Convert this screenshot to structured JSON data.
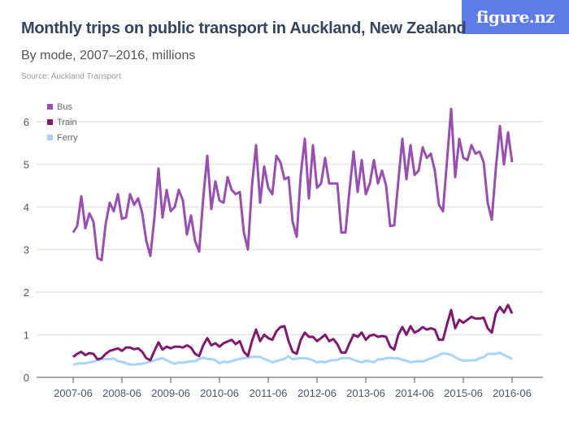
{
  "header": {
    "title": "Monthly trips on public transport in Auckland, New Zealand",
    "subtitle": "By mode, 2007–2016, millions",
    "source": "Source: Auckland Transport",
    "logo": "figure.nz"
  },
  "colors": {
    "bus": "#994fb0",
    "train": "#801a6e",
    "ferry": "#a8d4fa",
    "logo_bg": "#5d7ce8"
  },
  "chart_data": {
    "type": "line",
    "title": "Monthly trips on public transport in Auckland, New Zealand",
    "subtitle": "By mode, 2007–2016, millions",
    "ylim": [
      0,
      6.5
    ],
    "yticks": [
      "0",
      "1",
      "2",
      "3",
      "4",
      "5",
      "6"
    ],
    "xticks": [
      "2007-06",
      "2008-06",
      "2009-06",
      "2010-06",
      "2011-06",
      "2012-06",
      "2013-06",
      "2014-06",
      "2015-06",
      "2016-06"
    ],
    "grid": true,
    "legend": "top-left",
    "x": [
      "2007-06",
      "2007-07",
      "2007-08",
      "2007-09",
      "2007-10",
      "2007-11",
      "2007-12",
      "2008-01",
      "2008-02",
      "2008-03",
      "2008-04",
      "2008-05",
      "2008-06",
      "2008-07",
      "2008-08",
      "2008-09",
      "2008-10",
      "2008-11",
      "2008-12",
      "2009-01",
      "2009-02",
      "2009-03",
      "2009-04",
      "2009-05",
      "2009-06",
      "2009-07",
      "2009-08",
      "2009-09",
      "2009-10",
      "2009-11",
      "2009-12",
      "2010-01",
      "2010-02",
      "2010-03",
      "2010-04",
      "2010-05",
      "2010-06",
      "2010-07",
      "2010-08",
      "2010-09",
      "2010-10",
      "2010-11",
      "2010-12",
      "2011-01",
      "2011-02",
      "2011-03",
      "2011-04",
      "2011-05",
      "2011-06",
      "2011-07",
      "2011-08",
      "2011-09",
      "2011-10",
      "2011-11",
      "2011-12",
      "2012-01",
      "2012-02",
      "2012-03",
      "2012-04",
      "2012-05",
      "2012-06",
      "2012-07",
      "2012-08",
      "2012-09",
      "2012-10",
      "2012-11",
      "2012-12",
      "2013-01",
      "2013-02",
      "2013-03",
      "2013-04",
      "2013-05",
      "2013-06",
      "2013-07",
      "2013-08",
      "2013-09",
      "2013-10",
      "2013-11",
      "2013-12",
      "2014-01",
      "2014-02",
      "2014-03",
      "2014-04",
      "2014-05",
      "2014-06",
      "2014-07",
      "2014-08",
      "2014-09",
      "2014-10",
      "2014-11",
      "2014-12",
      "2015-01",
      "2015-02",
      "2015-03",
      "2015-04",
      "2015-05",
      "2015-06",
      "2015-07",
      "2015-08",
      "2015-09",
      "2015-10",
      "2015-11",
      "2015-12",
      "2016-01",
      "2016-02",
      "2016-03",
      "2016-04",
      "2016-05",
      "2016-06"
    ],
    "series": [
      {
        "name": "Bus",
        "values": [
          3.4,
          3.55,
          4.25,
          3.5,
          3.85,
          3.65,
          2.8,
          2.75,
          3.6,
          4.1,
          3.9,
          4.3,
          3.72,
          3.75,
          4.3,
          4.05,
          4.2,
          3.85,
          3.2,
          2.85,
          3.75,
          4.9,
          3.75,
          4.4,
          3.9,
          4.0,
          4.4,
          4.15,
          3.35,
          3.8,
          3.2,
          2.95,
          4.2,
          5.2,
          3.95,
          4.6,
          4.15,
          4.1,
          4.7,
          4.4,
          4.3,
          4.35,
          3.4,
          3.0,
          4.5,
          5.45,
          4.1,
          4.95,
          4.45,
          4.3,
          5.2,
          5.05,
          4.65,
          4.7,
          3.65,
          3.3,
          4.75,
          5.6,
          4.2,
          5.45,
          4.45,
          4.55,
          5.15,
          4.55,
          4.55,
          4.55,
          3.4,
          3.4,
          4.4,
          5.3,
          4.35,
          5.1,
          4.3,
          4.55,
          5.1,
          4.55,
          4.85,
          4.5,
          3.55,
          3.57,
          4.6,
          5.6,
          4.65,
          5.45,
          4.75,
          4.85,
          5.4,
          5.15,
          5.25,
          4.85,
          4.05,
          3.9,
          5.1,
          6.3,
          4.7,
          5.6,
          5.15,
          5.1,
          5.45,
          5.25,
          5.3,
          5.05,
          4.1,
          3.7,
          4.9,
          5.9,
          5.0,
          5.75,
          5.05
        ]
      },
      {
        "name": "Train",
        "values": [
          0.48,
          0.55,
          0.6,
          0.52,
          0.57,
          0.55,
          0.42,
          0.45,
          0.55,
          0.62,
          0.65,
          0.68,
          0.62,
          0.7,
          0.7,
          0.66,
          0.68,
          0.6,
          0.45,
          0.4,
          0.62,
          0.82,
          0.65,
          0.72,
          0.68,
          0.72,
          0.72,
          0.7,
          0.75,
          0.7,
          0.55,
          0.5,
          0.75,
          0.92,
          0.75,
          0.8,
          0.72,
          0.8,
          0.84,
          0.88,
          0.78,
          0.85,
          0.6,
          0.5,
          0.85,
          1.12,
          0.85,
          1.0,
          0.92,
          0.88,
          1.08,
          1.18,
          1.2,
          0.85,
          0.6,
          0.55,
          0.88,
          1.05,
          0.95,
          0.95,
          0.85,
          0.92,
          1.0,
          0.85,
          0.9,
          0.78,
          0.58,
          0.58,
          0.8,
          1.0,
          0.95,
          1.05,
          0.88,
          0.98,
          1.0,
          0.95,
          0.97,
          0.95,
          0.72,
          0.65,
          1.0,
          1.18,
          1.0,
          1.2,
          1.05,
          1.1,
          1.18,
          1.12,
          1.15,
          1.12,
          0.88,
          0.88,
          1.25,
          1.58,
          1.15,
          1.35,
          1.28,
          1.35,
          1.42,
          1.38,
          1.38,
          1.4,
          1.15,
          1.05,
          1.5,
          1.65,
          1.52,
          1.7,
          1.5
        ]
      },
      {
        "name": "Ferry",
        "values": [
          0.3,
          0.32,
          0.33,
          0.33,
          0.35,
          0.37,
          0.4,
          0.42,
          0.43,
          0.43,
          0.44,
          0.38,
          0.36,
          0.33,
          0.3,
          0.3,
          0.31,
          0.32,
          0.34,
          0.37,
          0.4,
          0.43,
          0.45,
          0.4,
          0.35,
          0.32,
          0.35,
          0.34,
          0.36,
          0.38,
          0.38,
          0.43,
          0.46,
          0.43,
          0.43,
          0.4,
          0.33,
          0.37,
          0.35,
          0.38,
          0.41,
          0.43,
          0.45,
          0.46,
          0.48,
          0.48,
          0.48,
          0.43,
          0.4,
          0.35,
          0.38,
          0.41,
          0.43,
          0.5,
          0.42,
          0.44,
          0.45,
          0.45,
          0.43,
          0.4,
          0.35,
          0.37,
          0.35,
          0.39,
          0.4,
          0.41,
          0.45,
          0.45,
          0.45,
          0.41,
          0.38,
          0.35,
          0.39,
          0.38,
          0.35,
          0.42,
          0.42,
          0.45,
          0.46,
          0.44,
          0.45,
          0.41,
          0.39,
          0.35,
          0.37,
          0.38,
          0.37,
          0.41,
          0.44,
          0.48,
          0.52,
          0.57,
          0.55,
          0.53,
          0.47,
          0.42,
          0.39,
          0.39,
          0.4,
          0.4,
          0.45,
          0.47,
          0.55,
          0.55,
          0.55,
          0.58,
          0.52,
          0.48,
          0.43
        ]
      }
    ]
  }
}
